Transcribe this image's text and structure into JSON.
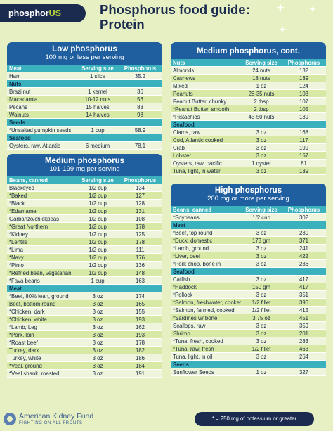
{
  "header": {
    "logo_text": "phosphor",
    "logo_accent": "US",
    "title_line1": "Phosphorus food guide:",
    "title_line2": "Protein"
  },
  "left": {
    "low": {
      "title": "Low phosphorus",
      "subtitle": "100 mg or less per serving",
      "columns": [
        "Meat",
        "Serving size",
        "Phosphorus (mg)"
      ],
      "sections": [
        {
          "name": null,
          "rows": [
            [
              "Ham",
              "1 slice",
              "35.2"
            ]
          ]
        },
        {
          "name": "Nuts",
          "rows": [
            [
              "Brazilnut",
              "1 kernel",
              "36"
            ],
            [
              "Macadamia",
              "10-12 nuts",
              "56"
            ],
            [
              "Pecans",
              "15 halves",
              "83"
            ],
            [
              "Walnuts",
              "14 halves",
              "98"
            ]
          ]
        },
        {
          "name": "Seeds",
          "rows": [
            [
              "*Unsalted pumpkin seeds",
              "1 cup",
              "58.9"
            ]
          ]
        },
        {
          "name": "Seafood",
          "rows": [
            [
              "Oysters, raw, Atlantic",
              "6 medium",
              "78.1"
            ]
          ]
        }
      ]
    },
    "medium": {
      "title": "Medium phosphorus",
      "subtitle": "101-199 mg per serving",
      "columns": [
        "Beans, canned",
        "Serving size",
        "Phosphorus (mg)"
      ],
      "sections": [
        {
          "name": null,
          "rows": [
            [
              "Blackeyed",
              "1/2 cup",
              "134"
            ],
            [
              "*Baked",
              "1/2 cup",
              "127"
            ],
            [
              "*Black",
              "1/2 cup",
              "128"
            ],
            [
              "*Edamame",
              "1/2 cup",
              "131"
            ],
            [
              "Garbanzo/chickpeas",
              "1/2 cup",
              "108"
            ],
            [
              "*Great Northern",
              "1/2 cup",
              "178"
            ],
            [
              "*Kidney",
              "1/2 cup",
              "125"
            ],
            [
              "*Lentils",
              "1/2 cup",
              "178"
            ],
            [
              "*Lima",
              "1/2 cup",
              "111"
            ],
            [
              "*Navy",
              "1/2 cup",
              "176"
            ],
            [
              "*Pinto",
              "1/2 cup",
              "136"
            ],
            [
              "*Refried bean, vegetarian",
              "1/2 cup",
              "148"
            ],
            [
              "*Fava beans",
              "1 cup",
              "163"
            ]
          ]
        },
        {
          "name": "Meat",
          "rows": [
            [
              "*Beef, 80% lean, ground",
              "3 oz",
              "174"
            ],
            [
              "Beef, bottom round",
              "3 oz",
              "165"
            ],
            [
              "*Chicken, dark",
              "3 oz",
              "155"
            ],
            [
              "*Chicken, white",
              "3 oz",
              "193"
            ],
            [
              "*Lamb, Leg",
              "3 oz",
              "162"
            ],
            [
              "*Pork, loin",
              "3 oz",
              "193"
            ],
            [
              "*Roast beef",
              "3 oz",
              "178"
            ],
            [
              "Turkey, dark",
              "3 oz",
              "182"
            ],
            [
              "Turkey, white",
              "3 oz",
              "186"
            ],
            [
              "*Veal, ground",
              "3 oz",
              "184"
            ],
            [
              "*Veal shank, roasted",
              "3 oz",
              "191"
            ]
          ]
        }
      ]
    }
  },
  "right": {
    "medium_cont": {
      "title": "Medium phosphorus, cont.",
      "columns": [
        "Nuts",
        "Serving size",
        "Phosphorus (mg)"
      ],
      "sections": [
        {
          "name": null,
          "rows": [
            [
              "Almonds",
              "24 nuts",
              "132"
            ],
            [
              "Cashews",
              "18 nuts",
              "139"
            ],
            [
              "Mixed",
              "1 oz",
              "124"
            ],
            [
              "Peanuts",
              "28-35 nuts",
              "103"
            ],
            [
              "Peanut Butter, chunky",
              "2 tbsp",
              "107"
            ],
            [
              "*Peanut Butter, smooth",
              "2 tbsp",
              "105"
            ],
            [
              "*Pistachios",
              "45-50 nuts",
              "139"
            ]
          ]
        },
        {
          "name": "Seafood",
          "rows": [
            [
              "Clams, raw",
              "3 oz",
              "168"
            ],
            [
              "Cod, Atlantic cooked",
              "3 oz",
              "117"
            ],
            [
              "Crab",
              "3 oz",
              "199"
            ],
            [
              "Lobster",
              "3 oz",
              "157"
            ],
            [
              "Oysters, raw, pacific",
              "1 oyster",
              "81"
            ],
            [
              "Tuna, light, in water",
              "3 oz",
              "139"
            ]
          ]
        }
      ]
    },
    "high": {
      "title": "High phosphorus",
      "subtitle": "200 mg or more per serving",
      "columns": [
        "Beans, canned",
        "Serving size",
        "Phosphorus (mg)"
      ],
      "sections": [
        {
          "name": null,
          "rows": [
            [
              "*Soybeans",
              "1/2 cup",
              "302"
            ]
          ]
        },
        {
          "name": "Meat",
          "rows": [
            [
              "*Beef, top round",
              "3 oz",
              "230"
            ],
            [
              "*Duck, domestic",
              "173 gm",
              "371"
            ],
            [
              "*Lamb, ground",
              "3 oz",
              "241"
            ],
            [
              "*Liver, beef",
              "3 oz",
              "422"
            ],
            [
              "*Pork chop, bone in",
              "3 oz",
              "236"
            ]
          ]
        },
        {
          "name": "Seafood",
          "rows": [
            [
              "Catfish",
              "3 oz",
              "417"
            ],
            [
              "*Haddock",
              "150 gm",
              "417"
            ],
            [
              "*Pollock",
              "3 oz",
              "351"
            ],
            [
              "*Salmon, freshwater, cooked",
              "1/2 fillet",
              "396"
            ],
            [
              "*Salmon, farmed, cooked",
              "1/2 fillet",
              "415"
            ],
            [
              "*Sardines w/ bone",
              "3.75 oz",
              "451"
            ],
            [
              "Scallops, raw",
              "3 oz",
              "359"
            ],
            [
              "Shrimp",
              "3 oz",
              "201"
            ],
            [
              "*Tuna, fresh, cooked",
              "3 oz",
              "283"
            ],
            [
              "*Tuna, raw, fresh",
              "1/2 fillet",
              "463"
            ],
            [
              "Tuna, light, in oil",
              "3 oz",
              "264"
            ]
          ]
        },
        {
          "name": "Seeds",
          "rows": [
            [
              "Sunflower Seeds",
              "1 oz",
              "327"
            ]
          ]
        }
      ]
    }
  },
  "footer": {
    "org_name": "American Kidney Fund",
    "org_tagline": "FIGHTING ON ALL FRONTS",
    "footnote": "* = 250 mg of potassium or greater"
  },
  "colors": {
    "navy": "#1a2b4f",
    "blue_banner": "#1f5fa0",
    "teal_header": "#3ab1bd",
    "green_row": "#d7e9a4",
    "light_row": "#eef5dc",
    "page_bg": "#e7f0c3"
  },
  "icons": [
    "sparkle-icon",
    "akf-logo-icon"
  ]
}
